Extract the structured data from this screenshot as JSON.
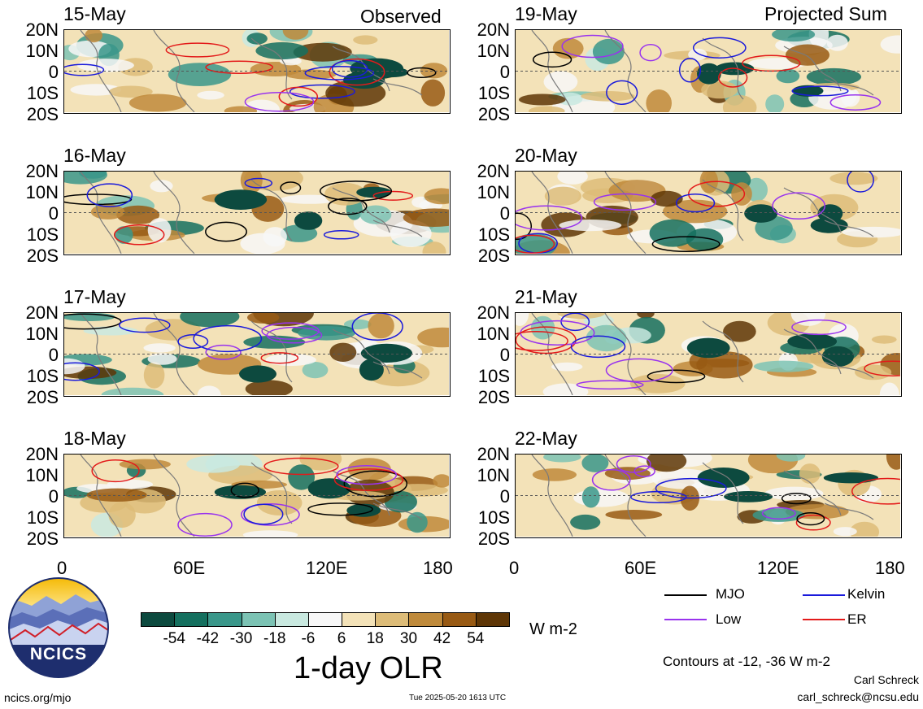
{
  "columns": {
    "left_title": "Observed",
    "right_title": "Projected Sum"
  },
  "lat_labels": [
    "20N",
    "10N",
    "0",
    "10S",
    "20S"
  ],
  "lon_labels": [
    "0",
    "60E",
    "120E",
    "180"
  ],
  "panels": [
    {
      "date": "15-May",
      "column": "observed"
    },
    {
      "date": "16-May",
      "column": "observed"
    },
    {
      "date": "17-May",
      "column": "observed"
    },
    {
      "date": "18-May",
      "column": "observed"
    },
    {
      "date": "19-May",
      "column": "projected"
    },
    {
      "date": "20-May",
      "column": "projected"
    },
    {
      "date": "21-May",
      "column": "projected"
    },
    {
      "date": "22-May",
      "column": "projected"
    }
  ],
  "colorbar": {
    "title": "1-day OLR",
    "units": "W m-2",
    "tick_labels": [
      "-54",
      "-42",
      "-30",
      "-18",
      "-6",
      "6",
      "18",
      "30",
      "42",
      "54"
    ],
    "colors": [
      "#0d4a3f",
      "#15705f",
      "#3a978a",
      "#7cc3b4",
      "#c9e9e0",
      "#f7f7f7",
      "#f3e2b8",
      "#ddbc78",
      "#bf8a3b",
      "#985a14",
      "#5e3606"
    ]
  },
  "legend": {
    "items": [
      {
        "label": "MJO",
        "color": "#000000"
      },
      {
        "label": "Kelvin",
        "color": "#1a1adb"
      },
      {
        "label": "Low",
        "color": "#9933ee"
      },
      {
        "label": "ER",
        "color": "#e31a1a"
      }
    ],
    "contours_note": "Contours at -12, -36 W m-2"
  },
  "credits": {
    "logo_text": "NCICS",
    "url": "ncics.org/mjo",
    "timestamp": "Tue 2025-05-20 1613 UTC",
    "author": "Carl Schreck",
    "email": "carl_schreck@ncsu.edu"
  }
}
